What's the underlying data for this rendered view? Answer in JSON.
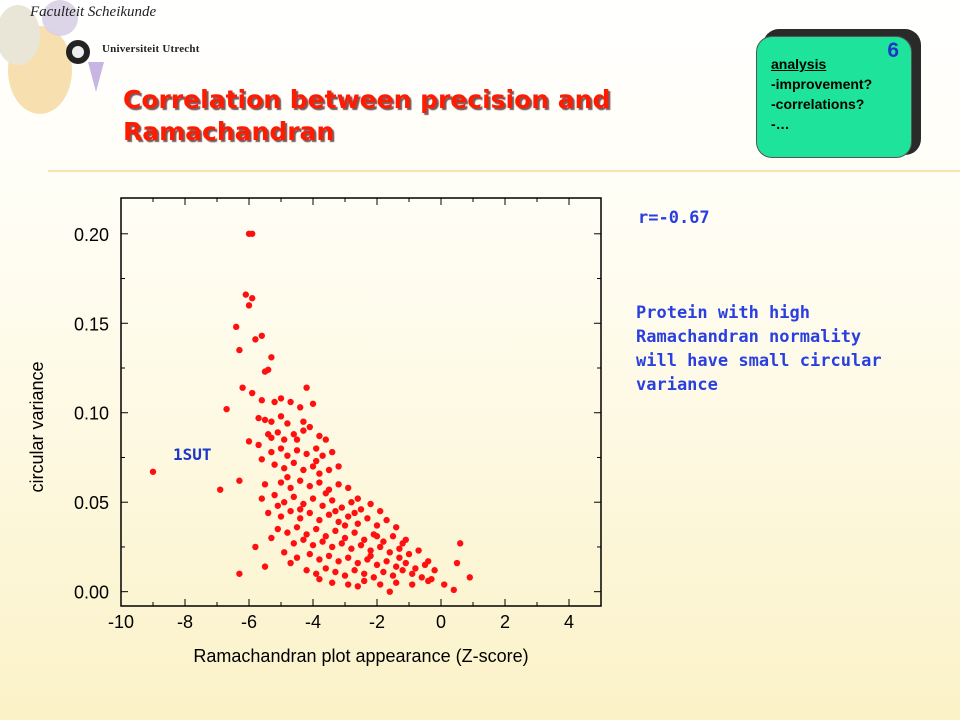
{
  "header": {
    "faculty": "Faculteit Scheikunde",
    "university": "Universiteit Utrecht"
  },
  "title_lines": [
    "Correlation between precision and",
    "Ramachandran"
  ],
  "badge": {
    "number": "6",
    "items": [
      "analysis",
      "-improvement?",
      "-correlations?",
      "-…"
    ]
  },
  "annotation": {
    "r_value": "r=-0.67",
    "note_lines": [
      "Protein with high",
      "Ramachandran normality",
      "will have small circular",
      "variance"
    ]
  },
  "colors": {
    "title": "#ff1a00",
    "badge": "#1ee39a",
    "note": "#2a3fe0",
    "points": "#ff1010",
    "point_label": "#1c37c8"
  },
  "chart_data": {
    "type": "scatter",
    "xlabel": "Ramachandran plot appearance (Z-score)",
    "ylabel": "circular variance",
    "xlim": [
      -10,
      5
    ],
    "ylim": [
      -0.008,
      0.22
    ],
    "xticks": [
      -10,
      -8,
      -6,
      -4,
      -2,
      0,
      2,
      4
    ],
    "xtick_labels": [
      "-10",
      "-8",
      "-6",
      "-4",
      "-2",
      "0",
      "2",
      "4"
    ],
    "yticks": [
      0,
      0.05,
      0.1,
      0.15,
      0.2
    ],
    "ytick_labels": [
      "0.00",
      "0.05",
      "0.10",
      "0.15",
      "0.20"
    ],
    "grid": false,
    "labels": [
      {
        "text": "1SUT",
        "x": -9.0,
        "y": 0.067
      }
    ],
    "points": [
      [
        -9.0,
        0.067
      ],
      [
        -6.0,
        0.2
      ],
      [
        -5.9,
        0.2
      ],
      [
        -6.1,
        0.166
      ],
      [
        -5.9,
        0.164
      ],
      [
        -6.0,
        0.16
      ],
      [
        -6.4,
        0.148
      ],
      [
        -6.3,
        0.135
      ],
      [
        -5.8,
        0.141
      ],
      [
        -5.6,
        0.143
      ],
      [
        -5.3,
        0.131
      ],
      [
        -5.4,
        0.124
      ],
      [
        -5.5,
        0.123
      ],
      [
        -6.7,
        0.102
      ],
      [
        -6.2,
        0.114
      ],
      [
        -5.9,
        0.111
      ],
      [
        -5.6,
        0.107
      ],
      [
        -5.2,
        0.106
      ],
      [
        -5.0,
        0.108
      ],
      [
        -4.7,
        0.106
      ],
      [
        -4.4,
        0.103
      ],
      [
        -4.2,
        0.114
      ],
      [
        -4.0,
        0.105
      ],
      [
        -5.7,
        0.097
      ],
      [
        -5.5,
        0.096
      ],
      [
        -5.3,
        0.095
      ],
      [
        -5.0,
        0.098
      ],
      [
        -4.8,
        0.094
      ],
      [
        -5.4,
        0.088
      ],
      [
        -5.3,
        0.086
      ],
      [
        -5.1,
        0.089
      ],
      [
        -4.9,
        0.085
      ],
      [
        -4.6,
        0.088
      ],
      [
        -4.3,
        0.09
      ],
      [
        -4.1,
        0.092
      ],
      [
        -3.8,
        0.087
      ],
      [
        -3.6,
        0.085
      ],
      [
        -6.0,
        0.084
      ],
      [
        -5.7,
        0.082
      ],
      [
        -5.3,
        0.078
      ],
      [
        -5.0,
        0.08
      ],
      [
        -4.8,
        0.076
      ],
      [
        -4.5,
        0.079
      ],
      [
        -4.2,
        0.077
      ],
      [
        -3.9,
        0.08
      ],
      [
        -3.7,
        0.076
      ],
      [
        -3.4,
        0.078
      ],
      [
        -5.2,
        0.071
      ],
      [
        -4.9,
        0.069
      ],
      [
        -4.6,
        0.072
      ],
      [
        -4.3,
        0.068
      ],
      [
        -4.0,
        0.07
      ],
      [
        -3.8,
        0.066
      ],
      [
        -3.5,
        0.068
      ],
      [
        -3.2,
        0.07
      ],
      [
        -6.3,
        0.062
      ],
      [
        -5.5,
        0.06
      ],
      [
        -5.0,
        0.061
      ],
      [
        -4.7,
        0.058
      ],
      [
        -4.4,
        0.062
      ],
      [
        -4.1,
        0.059
      ],
      [
        -3.8,
        0.061
      ],
      [
        -3.5,
        0.057
      ],
      [
        -3.2,
        0.06
      ],
      [
        -2.9,
        0.058
      ],
      [
        -6.9,
        0.057
      ],
      [
        -5.6,
        0.052
      ],
      [
        -5.2,
        0.054
      ],
      [
        -4.9,
        0.05
      ],
      [
        -4.6,
        0.053
      ],
      [
        -4.3,
        0.049
      ],
      [
        -4.0,
        0.052
      ],
      [
        -3.7,
        0.048
      ],
      [
        -3.4,
        0.051
      ],
      [
        -3.1,
        0.047
      ],
      [
        -2.8,
        0.05
      ],
      [
        -2.5,
        0.046
      ],
      [
        -2.2,
        0.049
      ],
      [
        -1.9,
        0.045
      ],
      [
        -5.4,
        0.044
      ],
      [
        -5.0,
        0.042
      ],
      [
        -4.7,
        0.045
      ],
      [
        -4.4,
        0.041
      ],
      [
        -4.1,
        0.044
      ],
      [
        -3.8,
        0.04
      ],
      [
        -3.5,
        0.043
      ],
      [
        -3.2,
        0.039
      ],
      [
        -2.9,
        0.042
      ],
      [
        -2.6,
        0.038
      ],
      [
        -2.3,
        0.041
      ],
      [
        -2.0,
        0.037
      ],
      [
        -1.7,
        0.04
      ],
      [
        -1.4,
        0.036
      ],
      [
        -5.1,
        0.035
      ],
      [
        -4.8,
        0.033
      ],
      [
        -4.5,
        0.036
      ],
      [
        -4.2,
        0.032
      ],
      [
        -3.9,
        0.035
      ],
      [
        -3.6,
        0.031
      ],
      [
        -3.3,
        0.034
      ],
      [
        -3.0,
        0.03
      ],
      [
        -2.7,
        0.033
      ],
      [
        -2.4,
        0.029
      ],
      [
        -2.1,
        0.032
      ],
      [
        -1.8,
        0.028
      ],
      [
        -1.5,
        0.031
      ],
      [
        -1.2,
        0.027
      ],
      [
        -5.3,
        0.03
      ],
      [
        -4.6,
        0.027
      ],
      [
        -4.3,
        0.029
      ],
      [
        -4.0,
        0.026
      ],
      [
        -3.7,
        0.028
      ],
      [
        -3.4,
        0.025
      ],
      [
        -3.1,
        0.027
      ],
      [
        -2.8,
        0.024
      ],
      [
        -2.5,
        0.026
      ],
      [
        -2.2,
        0.023
      ],
      [
        -1.9,
        0.025
      ],
      [
        -1.6,
        0.022
      ],
      [
        -1.3,
        0.024
      ],
      [
        -1.0,
        0.021
      ],
      [
        -0.7,
        0.023
      ],
      [
        -4.9,
        0.022
      ],
      [
        -4.5,
        0.019
      ],
      [
        -4.1,
        0.021
      ],
      [
        -3.8,
        0.018
      ],
      [
        -3.5,
        0.02
      ],
      [
        -3.2,
        0.017
      ],
      [
        -2.9,
        0.019
      ],
      [
        -2.6,
        0.016
      ],
      [
        -2.3,
        0.018
      ],
      [
        -2.0,
        0.015
      ],
      [
        -1.7,
        0.017
      ],
      [
        -1.4,
        0.014
      ],
      [
        -1.1,
        0.016
      ],
      [
        -0.8,
        0.013
      ],
      [
        -0.5,
        0.015
      ],
      [
        -0.2,
        0.012
      ],
      [
        -4.2,
        0.012
      ],
      [
        -3.9,
        0.01
      ],
      [
        -3.6,
        0.013
      ],
      [
        -3.3,
        0.011
      ],
      [
        -3.0,
        0.009
      ],
      [
        -2.7,
        0.012
      ],
      [
        -2.4,
        0.01
      ],
      [
        -2.1,
        0.008
      ],
      [
        -1.8,
        0.011
      ],
      [
        -1.5,
        0.009
      ],
      [
        -1.2,
        0.012
      ],
      [
        -0.9,
        0.01
      ],
      [
        -0.6,
        0.008
      ],
      [
        -3.4,
        0.005
      ],
      [
        -2.9,
        0.004
      ],
      [
        -2.4,
        0.006
      ],
      [
        -1.9,
        0.004
      ],
      [
        -1.4,
        0.005
      ],
      [
        -0.9,
        0.004
      ],
      [
        -0.4,
        0.006
      ],
      [
        -5.8,
        0.025
      ],
      [
        -6.3,
        0.01
      ],
      [
        -5.5,
        0.014
      ],
      [
        -0.3,
        0.007
      ],
      [
        0.1,
        0.004
      ],
      [
        0.5,
        0.016
      ],
      [
        0.6,
        0.027
      ],
      [
        0.9,
        0.008
      ],
      [
        0.4,
        0.001
      ],
      [
        -1.6,
        0.0
      ],
      [
        -2.6,
        0.003
      ],
      [
        -3.8,
        0.007
      ],
      [
        -4.7,
        0.016
      ],
      [
        -4.4,
        0.046
      ],
      [
        -3.6,
        0.055
      ],
      [
        -2.7,
        0.044
      ],
      [
        -2.0,
        0.031
      ],
      [
        -1.1,
        0.029
      ],
      [
        -4.8,
        0.064
      ],
      [
        -5.1,
        0.048
      ],
      [
        -3.0,
        0.037
      ],
      [
        -2.2,
        0.02
      ],
      [
        -1.3,
        0.019
      ],
      [
        -0.4,
        0.017
      ],
      [
        -3.3,
        0.045
      ],
      [
        -4.5,
        0.085
      ],
      [
        -3.9,
        0.073
      ],
      [
        -4.3,
        0.095
      ],
      [
        -5.6,
        0.074
      ],
      [
        -2.6,
        0.052
      ]
    ]
  }
}
